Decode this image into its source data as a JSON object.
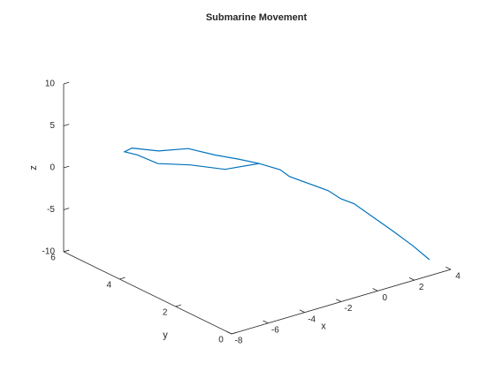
{
  "chart_data": {
    "type": "line3d",
    "title": "Submarine Movement",
    "xlabel": "x",
    "ylabel": "y",
    "zlabel": "z",
    "series": [
      {
        "color": "#0072bd",
        "x": [
          -1.9,
          -2.6,
          -3.2,
          -4.1,
          -5.1,
          -6.1,
          -6.2,
          -6.1,
          -5.6,
          -4.3,
          -3.0,
          -1.9,
          -1.2,
          -1.0,
          0.5,
          0.9,
          1.3,
          2.7,
          3.3,
          3.6
        ],
        "y": [
          3,
          3.3,
          3.7,
          4.1,
          4.5,
          4.8,
          5,
          4.6,
          4.2,
          3.9,
          3.5,
          3,
          2.7,
          2.5,
          2.1,
          1.9,
          1.7,
          1.2,
          0.9,
          0.5
        ],
        "z": [
          1.5,
          2.0,
          2.2,
          2.9,
          2.6,
          3.1,
          2.4,
          2.6,
          1.9,
          1.4,
          0.7,
          1.5,
          0.8,
          0.2,
          -1.8,
          -2.7,
          -3.2,
          -6.6,
          -8.2,
          -9.4
        ]
      }
    ],
    "xlim": [
      -8,
      4
    ],
    "ylim": [
      0,
      6
    ],
    "zlim": [
      -10,
      10
    ],
    "xticks": [
      -8,
      -6,
      -4,
      -2,
      0,
      2,
      4
    ],
    "yticks": [
      0,
      2,
      4,
      6
    ],
    "zticks": [
      -10,
      -5,
      0,
      5,
      10
    ]
  }
}
